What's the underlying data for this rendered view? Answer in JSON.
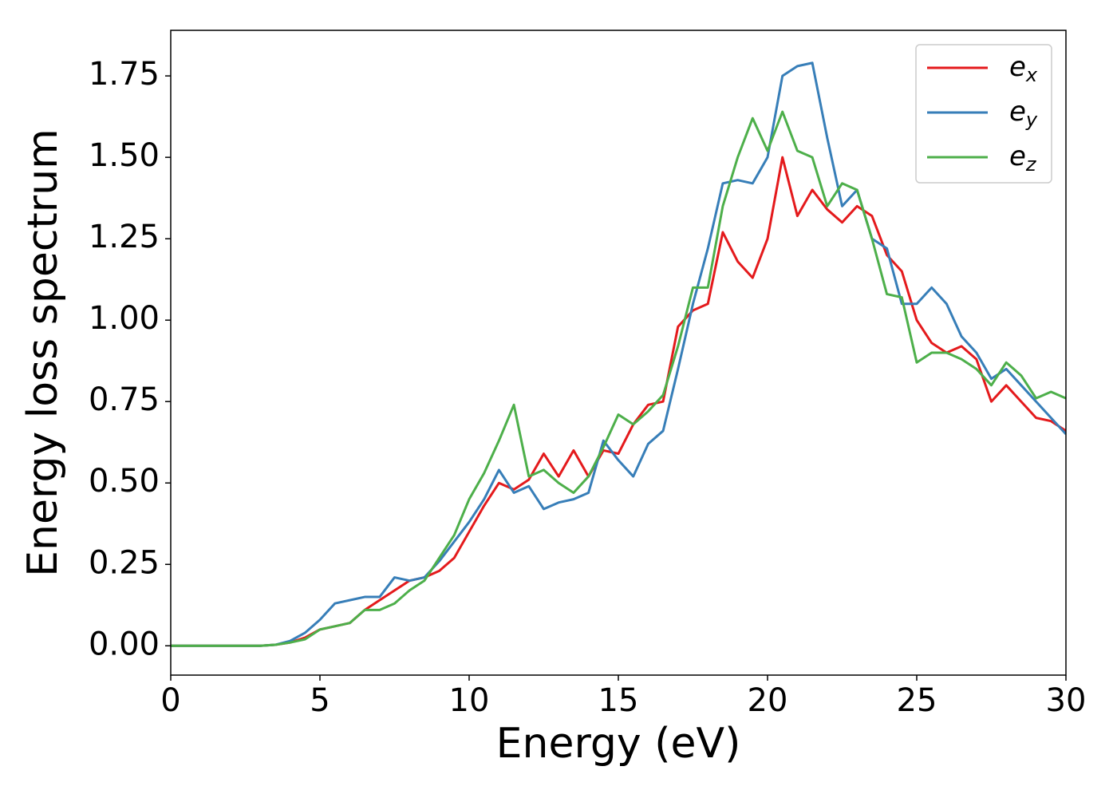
{
  "chart_data": {
    "type": "line",
    "xlabel": "Energy (eV)",
    "ylabel": "Energy loss spectrum",
    "x": [
      0,
      0.5,
      1,
      1.5,
      2,
      2.5,
      3,
      3.5,
      4,
      4.5,
      5,
      5.5,
      6,
      6.5,
      7,
      7.5,
      8,
      8.5,
      9,
      9.5,
      10,
      10.5,
      11,
      11.5,
      12,
      12.5,
      13,
      13.5,
      14,
      14.5,
      15,
      15.5,
      16,
      16.5,
      17,
      17.5,
      18,
      18.5,
      19,
      19.5,
      20,
      20.5,
      21,
      21.5,
      22,
      22.5,
      23,
      23.5,
      24,
      24.5,
      25,
      25.5,
      26,
      26.5,
      27,
      27.5,
      28,
      28.5,
      29,
      29.5,
      30
    ],
    "series": [
      {
        "name": "e_x",
        "color": "#e41a1c",
        "values": [
          0,
          0,
          0,
          0,
          0,
          0,
          0,
          0.003,
          0.01,
          0.025,
          0.05,
          0.06,
          0.07,
          0.11,
          0.14,
          0.17,
          0.2,
          0.21,
          0.23,
          0.27,
          0.35,
          0.43,
          0.5,
          0.48,
          0.51,
          0.59,
          0.52,
          0.6,
          0.52,
          0.6,
          0.59,
          0.68,
          0.74,
          0.75,
          0.98,
          1.03,
          1.05,
          1.27,
          1.18,
          1.13,
          1.25,
          1.5,
          1.32,
          1.4,
          1.34,
          1.3,
          1.35,
          1.32,
          1.2,
          1.15,
          1.0,
          0.93,
          0.9,
          0.92,
          0.88,
          0.75,
          0.8,
          0.75,
          0.7,
          0.69,
          0.66
        ]
      },
      {
        "name": "e_y",
        "color": "#377eb8",
        "values": [
          0,
          0,
          0,
          0,
          0,
          0,
          0,
          0.003,
          0.015,
          0.04,
          0.08,
          0.13,
          0.14,
          0.15,
          0.15,
          0.21,
          0.2,
          0.21,
          0.26,
          0.32,
          0.38,
          0.45,
          0.54,
          0.47,
          0.49,
          0.42,
          0.44,
          0.45,
          0.47,
          0.63,
          0.57,
          0.52,
          0.62,
          0.66,
          0.85,
          1.05,
          1.22,
          1.42,
          1.43,
          1.42,
          1.5,
          1.75,
          1.78,
          1.79,
          1.56,
          1.35,
          1.4,
          1.25,
          1.22,
          1.05,
          1.05,
          1.1,
          1.05,
          0.95,
          0.9,
          0.82,
          0.85,
          0.8,
          0.75,
          0.7,
          0.65
        ]
      },
      {
        "name": "e_z",
        "color": "#4daf4a",
        "values": [
          0,
          0,
          0,
          0,
          0,
          0,
          0,
          0.003,
          0.01,
          0.02,
          0.05,
          0.06,
          0.07,
          0.11,
          0.11,
          0.13,
          0.17,
          0.2,
          0.27,
          0.34,
          0.45,
          0.53,
          0.63,
          0.74,
          0.52,
          0.54,
          0.5,
          0.47,
          0.52,
          0.61,
          0.71,
          0.68,
          0.72,
          0.77,
          0.92,
          1.1,
          1.1,
          1.35,
          1.5,
          1.62,
          1.52,
          1.64,
          1.52,
          1.5,
          1.35,
          1.42,
          1.4,
          1.25,
          1.08,
          1.07,
          0.87,
          0.9,
          0.9,
          0.88,
          0.85,
          0.8,
          0.87,
          0.83,
          0.76,
          0.78,
          0.76
        ]
      }
    ],
    "xlim": [
      0,
      30
    ],
    "xticks": [
      0,
      5,
      10,
      15,
      20,
      25,
      30
    ],
    "ylim": [
      -0.09,
      1.89
    ],
    "yticks": [
      {
        "value": 0,
        "label": "0.00"
      },
      {
        "value": 0.25,
        "label": "0.25"
      },
      {
        "value": 0.5,
        "label": "0.50"
      },
      {
        "value": 0.75,
        "label": "0.75"
      },
      {
        "value": 1.0,
        "label": "1.00"
      },
      {
        "value": 1.25,
        "label": "1.25"
      },
      {
        "value": 1.5,
        "label": "1.50"
      },
      {
        "value": 1.75,
        "label": "1.75"
      }
    ],
    "legend": "upper right",
    "grid": false
  }
}
